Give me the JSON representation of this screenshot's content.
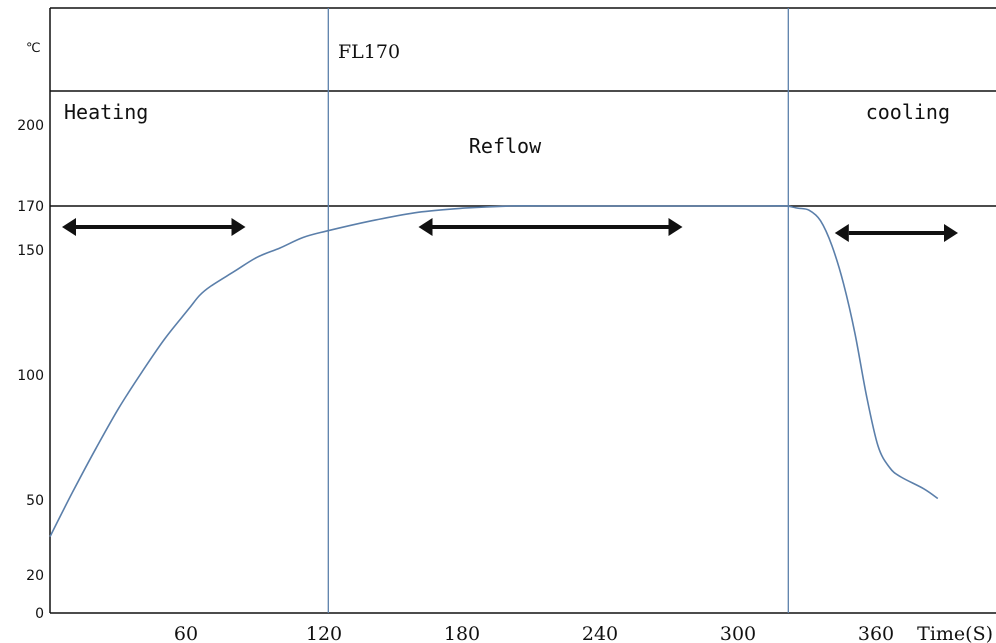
{
  "chart_data": {
    "type": "line",
    "title": "FL170",
    "y_unit": "℃",
    "xlabel": "Time(S)",
    "xlim": [
      0,
      386
    ],
    "ylim": [
      0,
      200
    ],
    "x_ticks": [
      60,
      120,
      180,
      240,
      300,
      360
    ],
    "y_ticks": [
      0,
      20,
      50,
      100,
      150,
      170,
      200
    ],
    "phase_boundaries": [
      121,
      321
    ],
    "peak_temperature": 170,
    "regions": [
      {
        "label": "Heating",
        "x_start": 0,
        "x_end": 85
      },
      {
        "label": "Reflow",
        "x_start": 155,
        "x_end": 275
      },
      {
        "label": "cooling",
        "x_start": 336,
        "x_end": 403
      }
    ],
    "series": [
      {
        "color": "#5b7faa",
        "x": [
          0,
          10,
          20,
          30,
          40,
          50,
          60,
          65,
          70,
          80,
          90,
          100,
          110,
          120,
          140,
          160,
          180,
          200,
          220,
          240,
          260,
          280,
          300,
          310,
          320,
          325,
          330,
          335,
          340,
          345,
          350,
          355,
          360,
          365,
          370,
          380,
          386
        ],
        "y": [
          37,
          56,
          74,
          91,
          106,
          120,
          132,
          138,
          142,
          148,
          154,
          158,
          163,
          166,
          171,
          175,
          177,
          178,
          178,
          178,
          178,
          178,
          178,
          178,
          178,
          177,
          176,
          171,
          159,
          143,
          122,
          96,
          75,
          66,
          62,
          57,
          53
        ]
      }
    ],
    "colors": {
      "axis": "#111111",
      "divider": "#5b7faa",
      "arrow": "#111111"
    }
  }
}
